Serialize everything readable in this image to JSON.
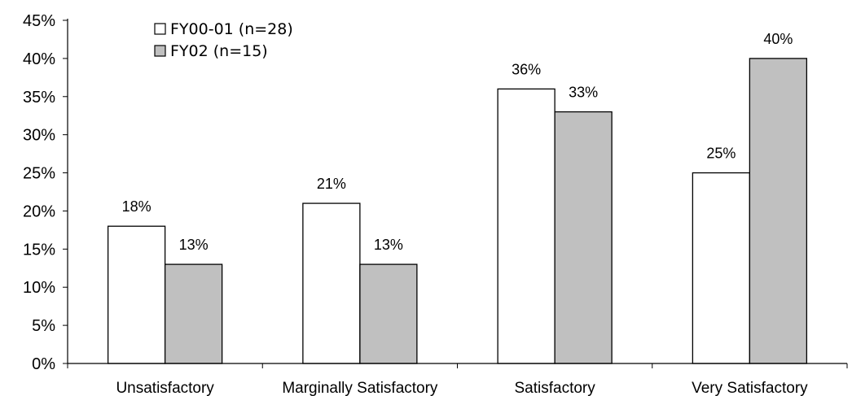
{
  "chart_data": {
    "type": "bar",
    "categories": [
      "Unsatisfactory",
      "Marginally Satisfactory",
      "Satisfactory",
      "Very Satisfactory"
    ],
    "series": [
      {
        "name": "FY00-01 (n=28)",
        "values": [
          18,
          21,
          36,
          25
        ],
        "labels": [
          "18%",
          "21%",
          "36%",
          "25%"
        ],
        "color": "#ffffff"
      },
      {
        "name": "FY02 (n=15)",
        "values": [
          13,
          13,
          33,
          40
        ],
        "labels": [
          "13%",
          "13%",
          "33%",
          "40%"
        ],
        "color": "#c0c0c0"
      }
    ],
    "ylim": [
      0,
      45
    ],
    "yticks": [
      "0%",
      "5%",
      "10%",
      "15%",
      "20%",
      "25%",
      "30%",
      "35%",
      "40%",
      "45%"
    ],
    "title": "",
    "xlabel": "",
    "ylabel": "",
    "grid": false,
    "legend_position": "top-left"
  }
}
